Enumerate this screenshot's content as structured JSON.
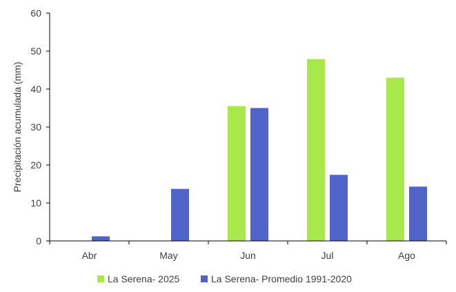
{
  "chart_data": {
    "type": "bar",
    "title": "",
    "xlabel": "",
    "ylabel": "Precipitación acumulada (mm)",
    "ylim": [
      0,
      60
    ],
    "yticks": [
      0,
      10,
      20,
      30,
      40,
      50,
      60
    ],
    "categories": [
      "Abr",
      "May",
      "Jun",
      "Jul",
      "Ago"
    ],
    "series": [
      {
        "name": "La Serena- 2025",
        "color": "#a9e84a",
        "values": [
          0,
          0,
          35.5,
          47.9,
          43.0
        ]
      },
      {
        "name": "La Serena- Promedio 1991-2020",
        "color": "#4f63c8",
        "values": [
          1.2,
          13.7,
          35.0,
          17.4,
          14.3
        ]
      }
    ],
    "grid": false,
    "legend": "bottom"
  }
}
